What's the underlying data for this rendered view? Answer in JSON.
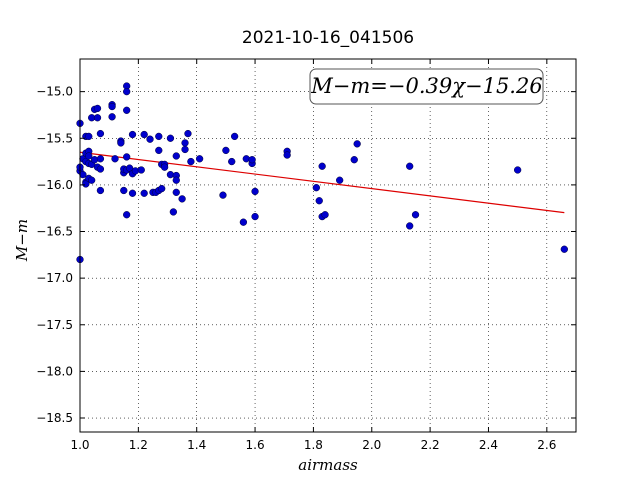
{
  "chart_data": {
    "type": "scatter",
    "title": "2021-10-16_041506",
    "xlabel": "airmass",
    "ylabel": "M−m",
    "xlim": [
      1.0,
      2.7
    ],
    "ylim": [
      -18.65,
      -14.65
    ],
    "y_inverted": true,
    "grid": true,
    "x_ticks": [
      1.0,
      1.2,
      1.4,
      1.6,
      1.8,
      2.0,
      2.2,
      2.4,
      2.6
    ],
    "x_tick_labels": [
      "1.0",
      "1.2",
      "1.4",
      "1.6",
      "1.8",
      "2.0",
      "2.2",
      "2.4",
      "2.6"
    ],
    "y_ticks": [
      -15.0,
      -15.5,
      -16.0,
      -16.5,
      -17.0,
      -17.5,
      -18.0,
      -18.5
    ],
    "y_tick_labels": [
      "−15.0",
      "−15.5",
      "−16.0",
      "−16.5",
      "−17.0",
      "−17.5",
      "−18.0",
      "−18.5"
    ],
    "annotation": "M−m=−0.39χ−15.26",
    "annotation_position": "top-right",
    "colors": {
      "points": "#0000cc",
      "fit": "#dd0000"
    },
    "fit_line": {
      "slope": -0.39,
      "intercept": -15.26,
      "x_range": [
        1.0,
        2.66
      ]
    },
    "series": [
      {
        "points": [
          [
            1.0,
            -15.34
          ],
          [
            1.0,
            -15.85
          ],
          [
            1.0,
            -15.81
          ],
          [
            1.0,
            -16.8
          ],
          [
            1.01,
            -15.72
          ],
          [
            1.01,
            -15.89
          ],
          [
            1.02,
            -15.48
          ],
          [
            1.02,
            -15.66
          ],
          [
            1.02,
            -15.75
          ],
          [
            1.02,
            -15.97
          ],
          [
            1.02,
            -15.99
          ],
          [
            1.03,
            -15.48
          ],
          [
            1.03,
            -15.64
          ],
          [
            1.03,
            -15.69
          ],
          [
            1.03,
            -15.77
          ],
          [
            1.03,
            -15.93
          ],
          [
            1.04,
            -15.28
          ],
          [
            1.04,
            -15.78
          ],
          [
            1.04,
            -15.95
          ],
          [
            1.05,
            -15.19
          ],
          [
            1.05,
            -15.73
          ],
          [
            1.06,
            -15.18
          ],
          [
            1.06,
            -15.28
          ],
          [
            1.06,
            -15.81
          ],
          [
            1.07,
            -15.45
          ],
          [
            1.07,
            -15.72
          ],
          [
            1.07,
            -15.83
          ],
          [
            1.07,
            -16.06
          ],
          [
            1.11,
            -15.14
          ],
          [
            1.11,
            -15.16
          ],
          [
            1.11,
            -15.27
          ],
          [
            1.12,
            -15.72
          ],
          [
            1.14,
            -15.53
          ],
          [
            1.14,
            -15.55
          ],
          [
            1.15,
            -15.87
          ],
          [
            1.15,
            -15.83
          ],
          [
            1.15,
            -16.06
          ],
          [
            1.16,
            -14.94
          ],
          [
            1.16,
            -15.0
          ],
          [
            1.16,
            -15.2
          ],
          [
            1.16,
            -15.84
          ],
          [
            1.16,
            -15.7
          ],
          [
            1.16,
            -16.32
          ],
          [
            1.17,
            -15.82
          ],
          [
            1.18,
            -15.46
          ],
          [
            1.18,
            -15.88
          ],
          [
            1.18,
            -16.09
          ],
          [
            1.19,
            -15.85
          ],
          [
            1.21,
            -15.84
          ],
          [
            1.22,
            -15.46
          ],
          [
            1.22,
            -16.09
          ],
          [
            1.24,
            -15.51
          ],
          [
            1.25,
            -16.08
          ],
          [
            1.26,
            -16.08
          ],
          [
            1.27,
            -15.48
          ],
          [
            1.27,
            -15.63
          ],
          [
            1.27,
            -16.06
          ],
          [
            1.28,
            -15.78
          ],
          [
            1.28,
            -16.04
          ],
          [
            1.29,
            -15.78
          ],
          [
            1.29,
            -15.81
          ],
          [
            1.31,
            -15.5
          ],
          [
            1.31,
            -15.89
          ],
          [
            1.32,
            -16.29
          ],
          [
            1.33,
            -15.69
          ],
          [
            1.33,
            -15.9
          ],
          [
            1.33,
            -15.95
          ],
          [
            1.33,
            -16.08
          ],
          [
            1.35,
            -16.15
          ],
          [
            1.36,
            -15.55
          ],
          [
            1.36,
            -15.62
          ],
          [
            1.37,
            -15.45
          ],
          [
            1.38,
            -15.75
          ],
          [
            1.41,
            -15.72
          ],
          [
            1.49,
            -16.11
          ],
          [
            1.5,
            -15.63
          ],
          [
            1.52,
            -15.75
          ],
          [
            1.53,
            -15.48
          ],
          [
            1.56,
            -16.4
          ],
          [
            1.57,
            -15.72
          ],
          [
            1.59,
            -15.77
          ],
          [
            1.59,
            -15.73
          ],
          [
            1.6,
            -16.07
          ],
          [
            1.6,
            -16.34
          ],
          [
            1.71,
            -15.64
          ],
          [
            1.71,
            -15.68
          ],
          [
            1.81,
            -16.03
          ],
          [
            1.82,
            -16.17
          ],
          [
            1.83,
            -15.8
          ],
          [
            1.83,
            -16.34
          ],
          [
            1.84,
            -16.32
          ],
          [
            1.89,
            -15.95
          ],
          [
            1.94,
            -15.73
          ],
          [
            1.95,
            -15.56
          ],
          [
            2.13,
            -15.8
          ],
          [
            2.13,
            -16.44
          ],
          [
            2.15,
            -16.32
          ],
          [
            2.5,
            -15.84
          ],
          [
            2.66,
            -16.69
          ]
        ]
      }
    ]
  }
}
